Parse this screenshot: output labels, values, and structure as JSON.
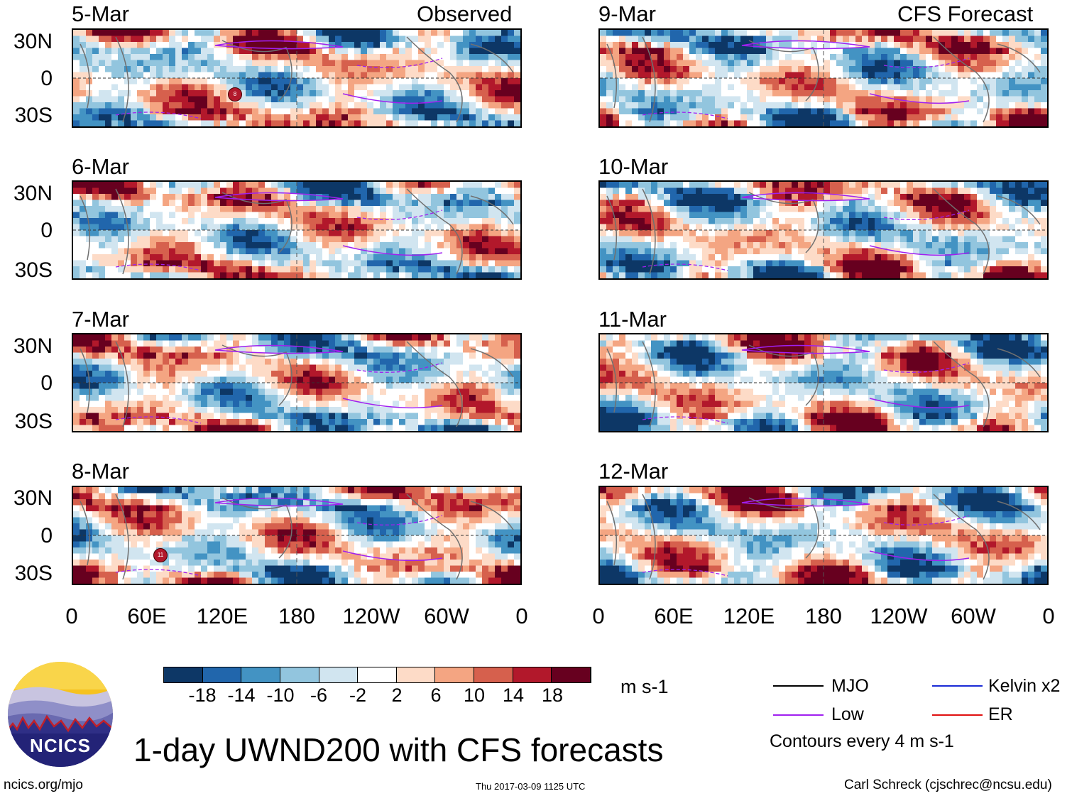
{
  "headers": {
    "observed": "Observed",
    "forecast": "CFS Forecast"
  },
  "panels": [
    {
      "date": "5-Mar",
      "section": "observed"
    },
    {
      "date": "6-Mar",
      "section": "observed"
    },
    {
      "date": "7-Mar",
      "section": "observed"
    },
    {
      "date": "8-Mar",
      "section": "observed"
    },
    {
      "date": "9-Mar",
      "section": "forecast"
    },
    {
      "date": "10-Mar",
      "section": "forecast"
    },
    {
      "date": "11-Mar",
      "section": "forecast"
    },
    {
      "date": "12-Mar",
      "section": "forecast"
    }
  ],
  "chart_data": {
    "type": "heatmap",
    "title": "1-day UWND200 with CFS forecasts",
    "variable": "UWND200",
    "units": "m s-1",
    "y_ticks": [
      "30N",
      "0",
      "30S"
    ],
    "x_ticks": [
      "0",
      "60E",
      "120E",
      "180",
      "120W",
      "60W",
      "0"
    ],
    "colorbar": {
      "tick_labels": [
        "-18",
        "-14",
        "-10",
        "-6",
        "-2",
        "2",
        "6",
        "10",
        "14",
        "18"
      ],
      "colors": [
        "#0d3766",
        "#2166ac",
        "#4393c3",
        "#92c5de",
        "#d1e5f0",
        "#ffffff",
        "#fddbc7",
        "#f4a582",
        "#d6604d",
        "#b2182b",
        "#67001f"
      ]
    },
    "legend": [
      {
        "label": "MJO",
        "color": "#000000"
      },
      {
        "label": "Kelvin x2",
        "color": "#1a2bd6"
      },
      {
        "label": "Low",
        "color": "#a020f0"
      },
      {
        "label": "ER",
        "color": "#e01010"
      }
    ],
    "contour_note": "Contours every 4 m s-1",
    "storm_markers": [
      {
        "panel": "5-Mar",
        "label": "8"
      },
      {
        "panel": "8-Mar",
        "label": "11"
      }
    ]
  },
  "footer": {
    "logo_text": "NCICS",
    "url": "ncics.org/mjo",
    "timestamp": "Thu 2017-03-09 1125 UTC",
    "credit": "Carl Schreck (cjschrec@ncsu.edu)"
  }
}
